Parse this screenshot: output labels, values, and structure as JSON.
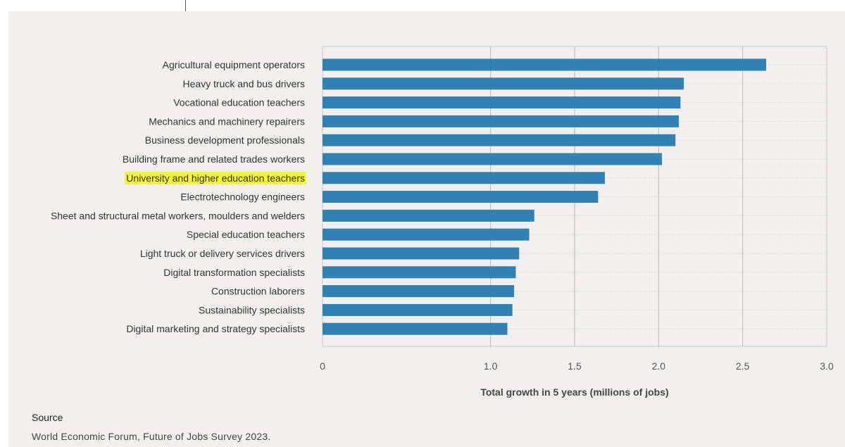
{
  "colors": {
    "bar": "#3381b2",
    "highlight": "#f4f43a",
    "panel": "#f1f0ee"
  },
  "chart_data": {
    "type": "bar",
    "orientation": "horizontal",
    "categories": [
      "Agricultural equipment operators",
      "Heavy truck and bus drivers",
      "Vocational education teachers",
      "Mechanics and machinery repairers",
      "Business development professionals",
      "Building frame and related trades workers",
      "University and higher education teachers",
      "Electrotechnology engineers",
      "Sheet and structural metal workers, moulders and welders",
      "Special education teachers",
      "Light truck or delivery services drivers",
      "Digital transformation specialists",
      "Construction laborers",
      "Sustainability specialists",
      "Digital marketing and strategy specialists"
    ],
    "values": [
      2.64,
      2.15,
      2.13,
      2.12,
      2.1,
      2.02,
      1.68,
      1.64,
      1.26,
      1.23,
      1.17,
      1.15,
      1.14,
      1.13,
      1.1
    ],
    "highlighted_category": "University and higher education teachers",
    "xlabel": "Total growth in 5 years (millions of jobs)",
    "xlim": [
      0,
      3.0
    ],
    "xticks": [
      "0",
      "1.0",
      "1.5",
      "2.0",
      "2.5",
      "3.0"
    ],
    "xtick_values": [
      0,
      1.0,
      1.5,
      2.0,
      2.5,
      3.0
    ],
    "grid": true
  },
  "source": {
    "label": "Source",
    "text": "World Economic Forum, Future of Jobs Survey 2023."
  }
}
